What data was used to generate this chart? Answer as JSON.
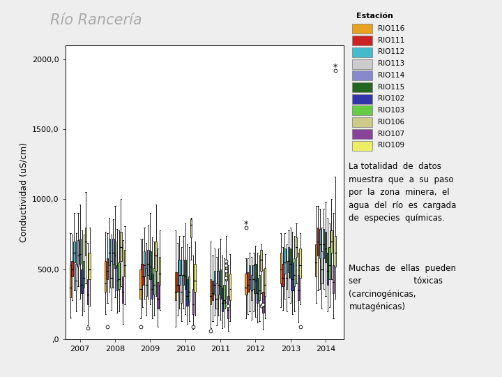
{
  "title": "Río Rancería",
  "title_color": "#aaaaaa",
  "ylabel": "Conductividad (uS/cm)",
  "years": [
    2007,
    2008,
    2009,
    2010,
    2011,
    2012,
    2013,
    2014
  ],
  "ylim": [
    0,
    2100
  ],
  "yticks": [
    0,
    500,
    1000,
    1500,
    2000
  ],
  "ytick_labels": [
    ",0",
    "500,0",
    "1000,0",
    "1500,0",
    "2000,0"
  ],
  "legend_title": "Estación",
  "stations": [
    "RIO116",
    "RIO111",
    "RIO112",
    "RIO113",
    "RIO114",
    "RIO115",
    "RIO102",
    "RIO103",
    "RIO106",
    "RIO107",
    "RIO109"
  ],
  "station_colors": [
    "#e8a020",
    "#cc2222",
    "#44bbcc",
    "#cccccc",
    "#8888cc",
    "#226622",
    "#3333aa",
    "#66cc44",
    "#cccc88",
    "#884499",
    "#eeee66"
  ],
  "ann1": "La totalidad  de  datos\nmuestra  que  a  su  paso\npor  la  zona  minera,  el\nagua  del  río  es  cargada\nde  especies  químicas.",
  "ann2": "Muchas  de  ellas  pueden\nser                    tóxicas\n(carcinogénicas,\nmutagénicas)"
}
